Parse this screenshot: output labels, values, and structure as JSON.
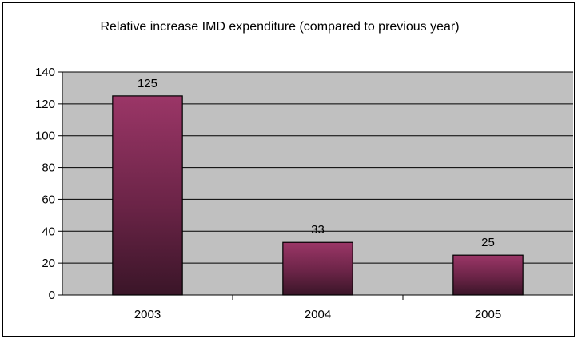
{
  "chart_data": {
    "type": "bar",
    "title": "Relative increase IMD expenditure (compared to previous year)",
    "xlabel": "",
    "ylabel": "",
    "categories": [
      "2003",
      "2004",
      "2005"
    ],
    "series": [
      {
        "values": [
          125,
          33,
          25
        ]
      }
    ],
    "data_labels": [
      "125",
      "33",
      "25"
    ],
    "ylim": [
      0,
      140
    ],
    "y_ticks": [
      "0",
      "20",
      "40",
      "60",
      "80",
      "100",
      "120",
      "140"
    ],
    "grid": true,
    "legend": "none",
    "colors": {
      "plot_background": "#c0c0c0",
      "bar_top": "#9b3667",
      "bar_bottom": "#3a1528",
      "gridline": "#000000"
    }
  }
}
